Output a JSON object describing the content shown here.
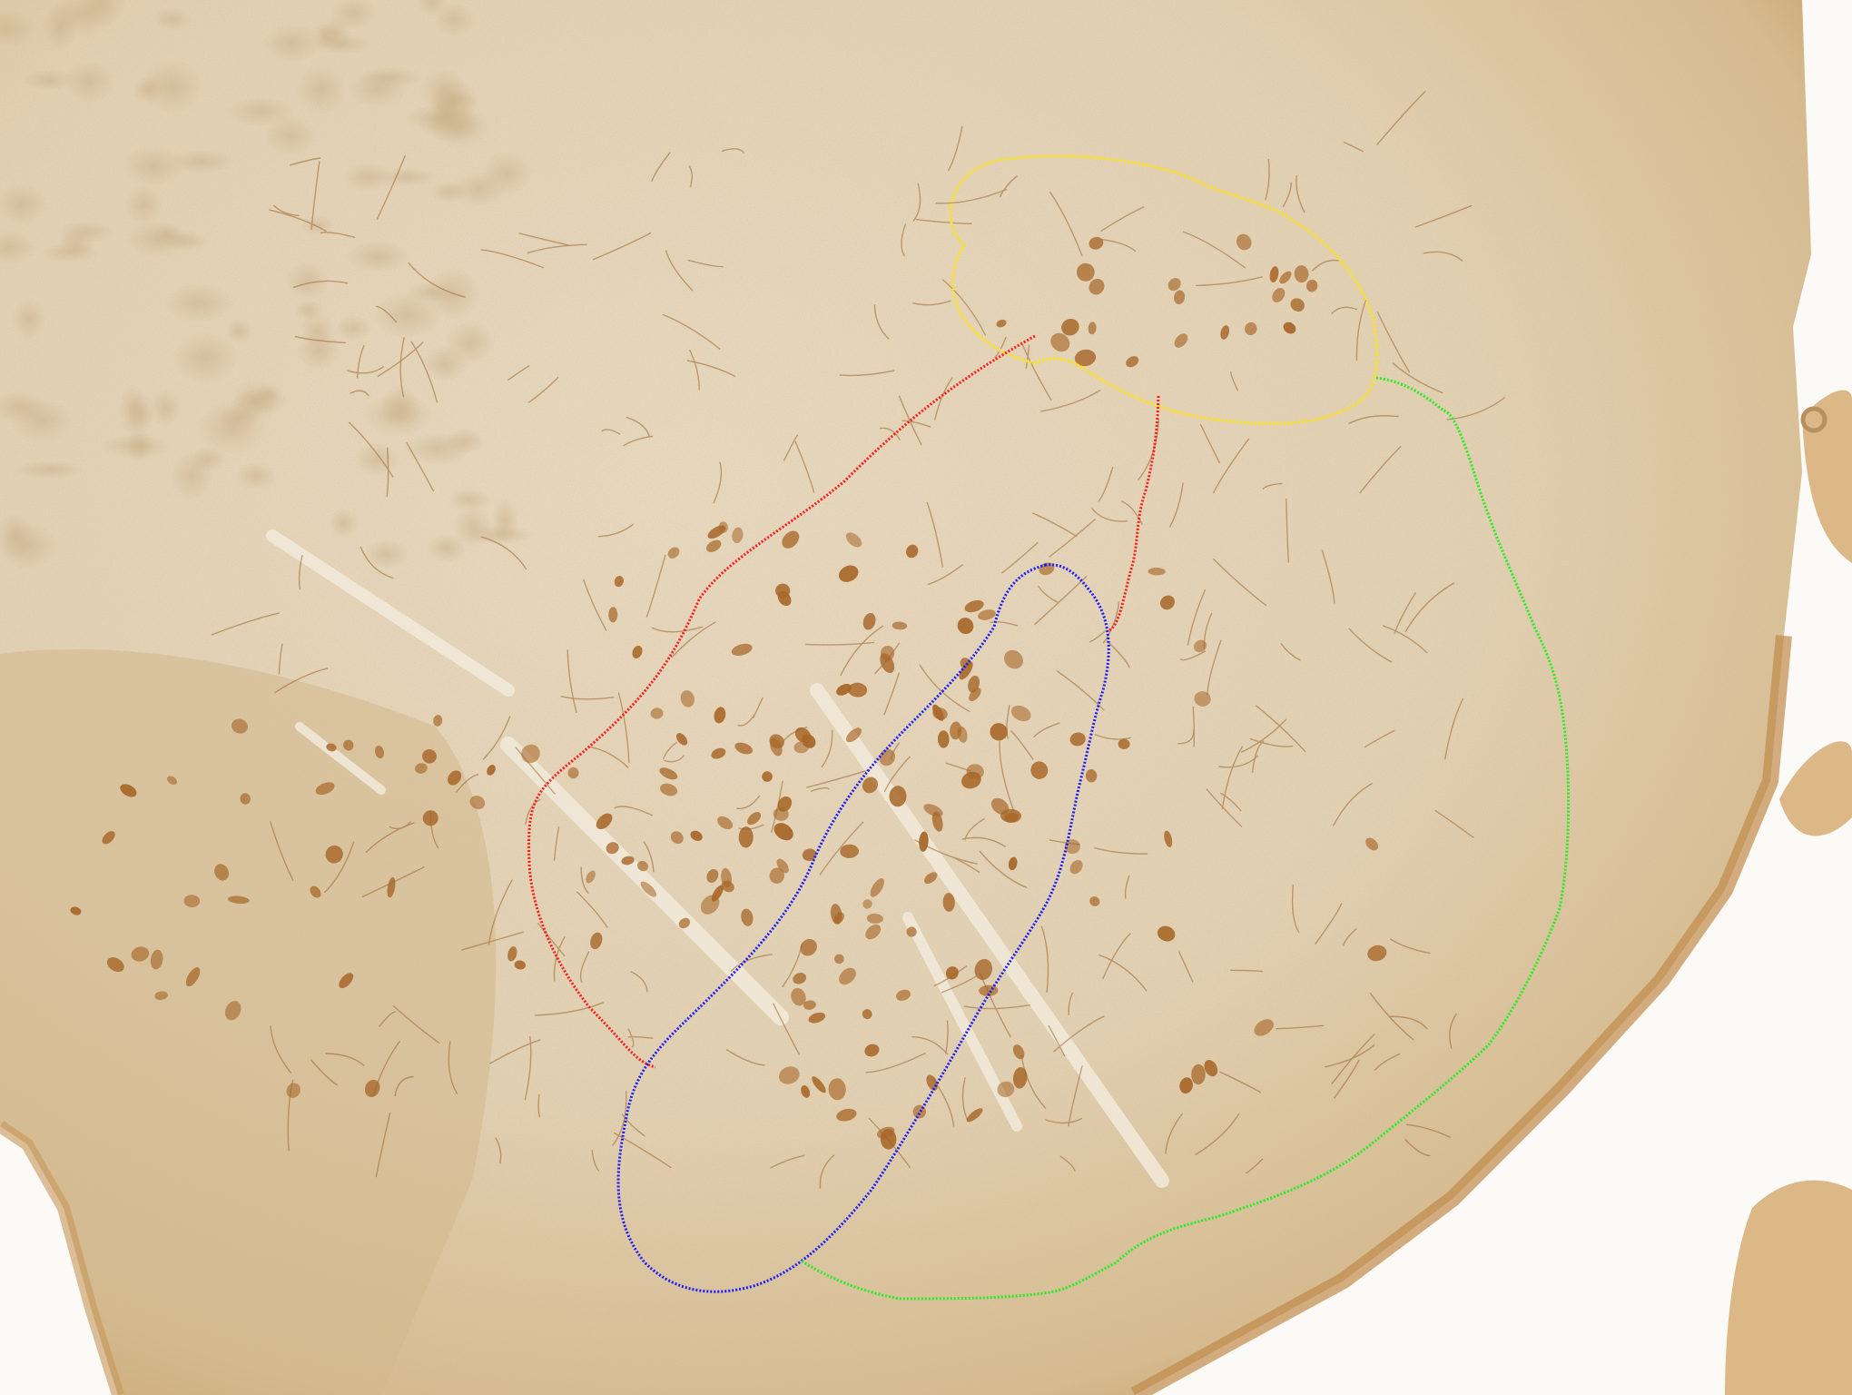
{
  "image": {
    "subject": "brain-tissue-section-micrograph",
    "stain": "immunohistochemistry-dab-brown",
    "colors": {
      "background": "#fbfaf7",
      "tissue_light": "#e9dcc4",
      "tissue_mid": "#d8c3a0",
      "tissue_edge": "#c99a60",
      "neuron": "#a8682a",
      "fiber_tract": "#f1e8d8"
    }
  },
  "outlines": [
    {
      "id": "yellow-region",
      "color": "#ffe600"
    },
    {
      "id": "red-region",
      "color": "#ff1a1a"
    },
    {
      "id": "blue-region",
      "color": "#1a1aff"
    },
    {
      "id": "green-region",
      "color": "#22ee22"
    }
  ]
}
